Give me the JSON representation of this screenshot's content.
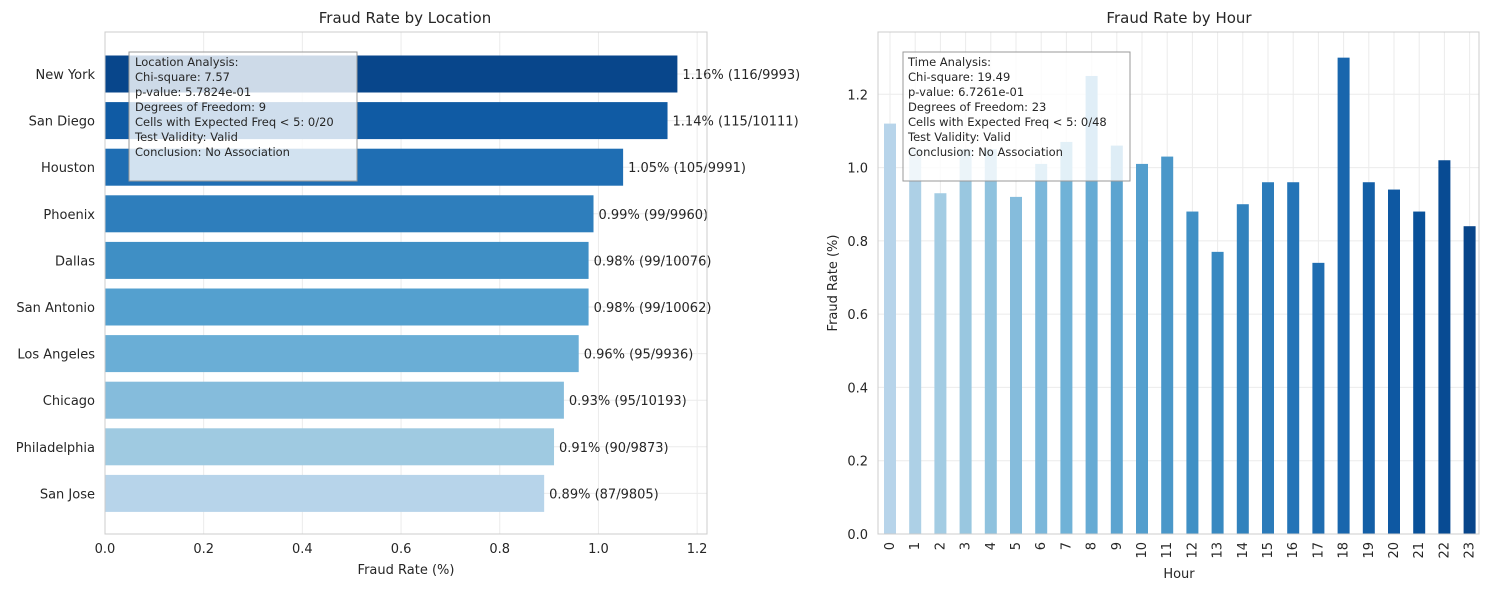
{
  "chart_data": [
    {
      "type": "bar",
      "orientation": "horizontal",
      "title": "Fraud Rate by Location",
      "xlabel": "Fraud Rate (%)",
      "ylabel": "",
      "xlim": [
        0,
        1.22
      ],
      "xticks": [
        "0.0",
        "0.2",
        "0.4",
        "0.6",
        "0.8",
        "1.0",
        "1.2"
      ],
      "grid": true,
      "categories": [
        "New York",
        "San Diego",
        "Houston",
        "Phoenix",
        "Dallas",
        "San Antonio",
        "Los Angeles",
        "Chicago",
        "Philadelphia",
        "San Jose"
      ],
      "values": [
        1.16,
        1.14,
        1.05,
        0.99,
        0.98,
        0.98,
        0.96,
        0.93,
        0.91,
        0.89
      ],
      "data_labels": [
        "1.16% (116/9993)",
        "1.14% (115/10111)",
        "1.05% (105/9991)",
        "0.99% (99/9960)",
        "0.98% (99/10076)",
        "0.98% (99/10062)",
        "0.96% (95/9936)",
        "0.93% (95/10193)",
        "0.91% (90/9873)",
        "0.89% (87/9805)"
      ],
      "colors": [
        "#08468b",
        "#105ba4",
        "#1f6eb3",
        "#2e7ebc",
        "#3f8fc5",
        "#54a0cf",
        "#6aaed6",
        "#85bcdc",
        "#9fcae1",
        "#b7d4ea"
      ],
      "annotation": [
        "Location Analysis:",
        "Chi-square: 7.57",
        "p-value: 5.7824e-01",
        "Degrees of Freedom: 9",
        "Cells with Expected Freq < 5: 0/20",
        "Test Validity: Valid",
        "Conclusion: No Association"
      ]
    },
    {
      "type": "bar",
      "title": "Fraud Rate by Hour",
      "xlabel": "Hour",
      "ylabel": "Fraud Rate (%)",
      "ylim": [
        0,
        1.37
      ],
      "yticks": [
        "0.0",
        "0.2",
        "0.4",
        "0.6",
        "0.8",
        "1.0",
        "1.2"
      ],
      "grid": true,
      "categories": [
        "0",
        "1",
        "2",
        "3",
        "4",
        "5",
        "6",
        "7",
        "8",
        "9",
        "10",
        "11",
        "12",
        "13",
        "14",
        "15",
        "16",
        "17",
        "18",
        "19",
        "20",
        "21",
        "22",
        "23"
      ],
      "values": [
        1.12,
        1.05,
        0.93,
        1.05,
        1.05,
        0.92,
        1.01,
        1.07,
        1.25,
        1.06,
        1.01,
        1.03,
        0.88,
        0.77,
        0.9,
        0.96,
        0.96,
        0.74,
        1.3,
        0.96,
        0.94,
        0.88,
        1.02,
        0.84
      ],
      "colors": [
        "#b7d4ea",
        "#add0e6",
        "#a3cce3",
        "#99c7e0",
        "#8fc2de",
        "#85bcdc",
        "#7bb7da",
        "#70b2d7",
        "#66abd4",
        "#5ca4d0",
        "#539ecd",
        "#4a97c9",
        "#4090c5",
        "#3889c1",
        "#3182bd",
        "#2b7bba",
        "#2474b7",
        "#1f6db1",
        "#1966ad",
        "#135fa7",
        "#0e58a2",
        "#09519a",
        "#084b93",
        "#08458a"
      ],
      "annotation": [
        "Time Analysis:",
        "Chi-square: 19.49",
        "p-value: 6.7261e-01",
        "Degrees of Freedom: 23",
        "Cells with Expected Freq < 5: 0/48",
        "Test Validity: Valid",
        "Conclusion: No Association"
      ]
    }
  ]
}
